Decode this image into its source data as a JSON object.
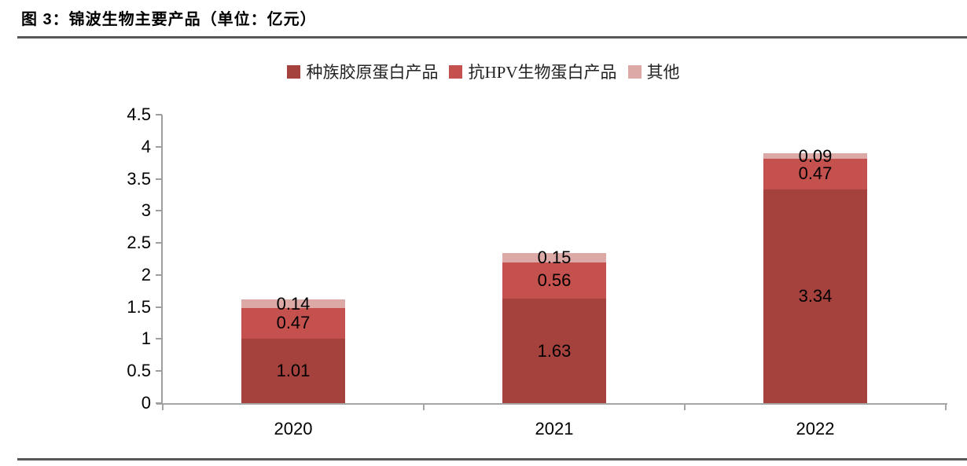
{
  "title": "图 3：锦波生物主要产品（单位：亿元）",
  "chart_data": {
    "type": "bar",
    "stacked": true,
    "title": "图 3：锦波生物主要产品（单位：亿元）",
    "unit": "亿元",
    "categories": [
      "2020",
      "2021",
      "2022"
    ],
    "series": [
      {
        "name": "种族胶原蛋白产品",
        "color": "#A5423D",
        "values": [
          1.01,
          1.63,
          3.34
        ]
      },
      {
        "name": "抗HPV生物蛋白产品",
        "color": "#C4514D",
        "values": [
          0.47,
          0.56,
          0.47
        ]
      },
      {
        "name": "其他",
        "color": "#DCA9A7",
        "values": [
          0.14,
          0.15,
          0.09
        ]
      }
    ],
    "xlabel": "",
    "ylabel": "",
    "ylim": [
      0,
      4.5
    ],
    "ytick_step": 0.5,
    "yticks": [
      "0",
      "0.5",
      "1",
      "1.5",
      "2",
      "2.5",
      "3",
      "3.5",
      "4",
      "4.5"
    ],
    "legend_position": "top",
    "grid": false,
    "axis_color": "#9e9e9e",
    "label_color": "#000000"
  }
}
